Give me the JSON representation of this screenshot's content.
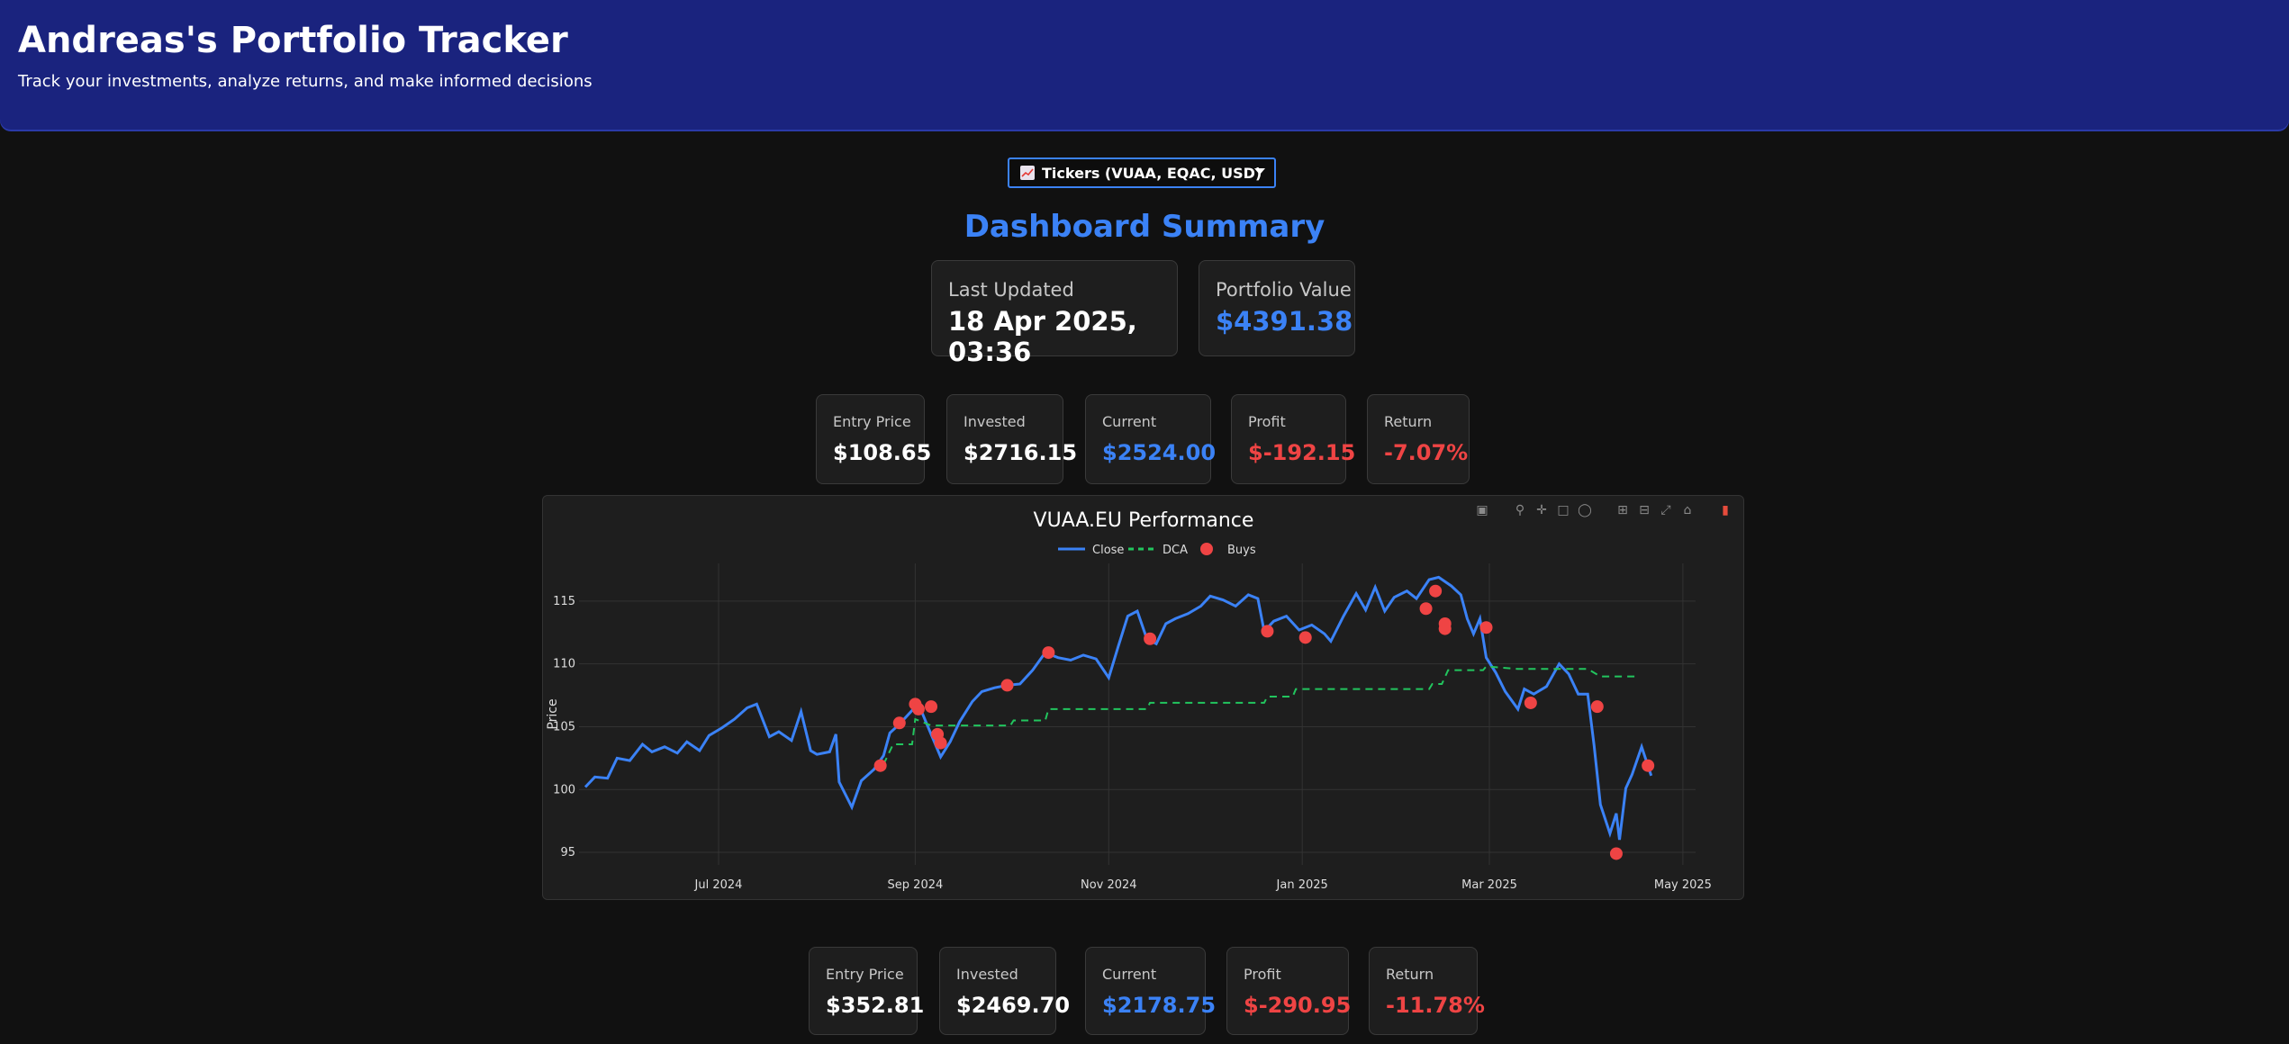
{
  "header": {
    "title": "Andreas's Portfolio Tracker",
    "subtitle": "Track your investments, analyze returns, and make informed decisions"
  },
  "dropdown": {
    "label": "Tickers (VUAA, EQAC, USD)",
    "icon": "chart-emoji-icon"
  },
  "dashboard_title": "Dashboard Summary",
  "summary": {
    "last_updated_label": "Last Updated",
    "last_updated_value": "18 Apr 2025, 03:36",
    "portfolio_value_label": "Portfolio Value",
    "portfolio_value": "$4391.38"
  },
  "positions": [
    {
      "entry_label": "Entry Price",
      "entry": "$108.65",
      "invested_label": "Invested",
      "invested": "$2716.15",
      "current_label": "Current",
      "current": "$2524.00",
      "profit_label": "Profit",
      "profit": "$-192.15",
      "return_label": "Return",
      "return": "-7.07%"
    },
    {
      "entry_label": "Entry Price",
      "entry": "$352.81",
      "invested_label": "Invested",
      "invested": "$2469.70",
      "current_label": "Current",
      "current": "$2178.75",
      "profit_label": "Profit",
      "profit": "$-290.95",
      "return_label": "Return",
      "return": "-11.78%"
    }
  ],
  "colors": {
    "header_bg": "#1a237e",
    "accent": "#3b82f6",
    "negative": "#ef4444",
    "close_line": "#3b82f6",
    "dca_line": "#22c55e",
    "buys": "#ef4444"
  },
  "modebar_icons": [
    "camera-icon",
    "zoom-icon",
    "pan-icon",
    "box-select-icon",
    "lasso-icon",
    "zoom-in-icon",
    "zoom-out-icon",
    "autoscale-icon",
    "reset-axes-icon",
    "plotly-logo-icon"
  ],
  "chart_data": {
    "type": "line",
    "title": "VUAA.EU Performance",
    "ylabel": "Price",
    "xlabel": "",
    "ylim": [
      94,
      118
    ],
    "xlim": [
      "2024-05-18",
      "2025-05-05"
    ],
    "x_ticks": [
      {
        "date": "2024-07-01",
        "label": "Jul 2024"
      },
      {
        "date": "2024-09-01",
        "label": "Sep 2024"
      },
      {
        "date": "2024-11-01",
        "label": "Nov 2024"
      },
      {
        "date": "2025-01-01",
        "label": "Jan 2025"
      },
      {
        "date": "2025-03-01",
        "label": "Mar 2025"
      },
      {
        "date": "2025-05-01",
        "label": "May 2025"
      }
    ],
    "y_ticks": [
      95,
      100,
      105,
      110,
      115
    ],
    "grid": true,
    "legend": "top-center",
    "series": [
      {
        "name": "Close",
        "style": "solid",
        "points": [
          [
            "2024-05-20",
            100.2
          ],
          [
            "2024-05-23",
            101.0
          ],
          [
            "2024-05-27",
            100.9
          ],
          [
            "2024-05-30",
            102.5
          ],
          [
            "2024-06-03",
            102.3
          ],
          [
            "2024-06-07",
            103.6
          ],
          [
            "2024-06-10",
            103.0
          ],
          [
            "2024-06-14",
            103.4
          ],
          [
            "2024-06-18",
            102.9
          ],
          [
            "2024-06-21",
            103.8
          ],
          [
            "2024-06-25",
            103.1
          ],
          [
            "2024-06-28",
            104.3
          ],
          [
            "2024-07-02",
            104.9
          ],
          [
            "2024-07-06",
            105.6
          ],
          [
            "2024-07-10",
            106.5
          ],
          [
            "2024-07-13",
            106.8
          ],
          [
            "2024-07-17",
            104.2
          ],
          [
            "2024-07-20",
            104.6
          ],
          [
            "2024-07-24",
            103.9
          ],
          [
            "2024-07-27",
            106.2
          ],
          [
            "2024-07-30",
            103.1
          ],
          [
            "2024-08-01",
            102.8
          ],
          [
            "2024-08-05",
            103.0
          ],
          [
            "2024-08-07",
            104.4
          ],
          [
            "2024-08-08",
            100.6
          ],
          [
            "2024-08-12",
            98.6
          ],
          [
            "2024-08-15",
            100.7
          ],
          [
            "2024-08-19",
            101.6
          ],
          [
            "2024-08-22",
            102.7
          ],
          [
            "2024-08-24",
            104.5
          ],
          [
            "2024-08-27",
            105.2
          ],
          [
            "2024-08-31",
            106.3
          ],
          [
            "2024-09-03",
            106.2
          ],
          [
            "2024-09-06",
            104.4
          ],
          [
            "2024-09-09",
            102.6
          ],
          [
            "2024-09-12",
            103.8
          ],
          [
            "2024-09-15",
            105.4
          ],
          [
            "2024-09-19",
            107.0
          ],
          [
            "2024-09-22",
            107.8
          ],
          [
            "2024-09-26",
            108.1
          ],
          [
            "2024-09-30",
            108.3
          ],
          [
            "2024-10-04",
            108.4
          ],
          [
            "2024-10-08",
            109.5
          ],
          [
            "2024-10-12",
            110.9
          ],
          [
            "2024-10-16",
            110.5
          ],
          [
            "2024-10-20",
            110.3
          ],
          [
            "2024-10-24",
            110.7
          ],
          [
            "2024-10-28",
            110.4
          ],
          [
            "2024-11-01",
            108.9
          ],
          [
            "2024-11-04",
            111.4
          ],
          [
            "2024-11-07",
            113.8
          ],
          [
            "2024-11-10",
            114.2
          ],
          [
            "2024-11-13",
            112.0
          ],
          [
            "2024-11-16",
            111.6
          ],
          [
            "2024-11-19",
            113.2
          ],
          [
            "2024-11-22",
            113.6
          ],
          [
            "2024-11-26",
            114.0
          ],
          [
            "2024-11-30",
            114.6
          ],
          [
            "2024-12-03",
            115.4
          ],
          [
            "2024-12-07",
            115.1
          ],
          [
            "2024-12-11",
            114.6
          ],
          [
            "2024-12-15",
            115.5
          ],
          [
            "2024-12-18",
            115.2
          ],
          [
            "2024-12-20",
            112.6
          ],
          [
            "2024-12-23",
            113.4
          ],
          [
            "2024-12-27",
            113.8
          ],
          [
            "2024-12-31",
            112.7
          ],
          [
            "2025-01-04",
            113.1
          ],
          [
            "2025-01-08",
            112.4
          ],
          [
            "2025-01-10",
            111.8
          ],
          [
            "2025-01-14",
            113.8
          ],
          [
            "2025-01-18",
            115.6
          ],
          [
            "2025-01-21",
            114.3
          ],
          [
            "2025-01-24",
            116.1
          ],
          [
            "2025-01-27",
            114.2
          ],
          [
            "2025-01-30",
            115.3
          ],
          [
            "2025-02-03",
            115.8
          ],
          [
            "2025-02-06",
            115.2
          ],
          [
            "2025-02-10",
            116.7
          ],
          [
            "2025-02-13",
            116.9
          ],
          [
            "2025-02-17",
            116.2
          ],
          [
            "2025-02-20",
            115.5
          ],
          [
            "2025-02-22",
            113.6
          ],
          [
            "2025-02-24",
            112.4
          ],
          [
            "2025-02-26",
            113.6
          ],
          [
            "2025-02-28",
            110.5
          ],
          [
            "2025-03-03",
            109.3
          ],
          [
            "2025-03-06",
            107.8
          ],
          [
            "2025-03-10",
            106.4
          ],
          [
            "2025-03-12",
            108.0
          ],
          [
            "2025-03-15",
            107.6
          ],
          [
            "2025-03-19",
            108.2
          ],
          [
            "2025-03-23",
            110.0
          ],
          [
            "2025-03-26",
            109.2
          ],
          [
            "2025-03-29",
            107.6
          ],
          [
            "2025-04-01",
            107.6
          ],
          [
            "2025-04-03",
            103.5
          ],
          [
            "2025-04-05",
            98.8
          ],
          [
            "2025-04-08",
            96.5
          ],
          [
            "2025-04-10",
            98.1
          ],
          [
            "2025-04-11",
            96.0
          ],
          [
            "2025-04-13",
            100.1
          ],
          [
            "2025-04-15",
            101.2
          ],
          [
            "2025-04-18",
            103.4
          ],
          [
            "2025-04-21",
            101.1
          ]
        ]
      },
      {
        "name": "DCA",
        "style": "dashed",
        "points": [
          [
            "2024-08-22",
            102.0
          ],
          [
            "2024-08-25",
            103.6
          ],
          [
            "2024-08-31",
            103.6
          ],
          [
            "2024-09-01",
            105.6
          ],
          [
            "2024-09-06",
            105.1
          ],
          [
            "2024-10-01",
            105.1
          ],
          [
            "2024-10-02",
            105.5
          ],
          [
            "2024-10-12",
            105.5
          ],
          [
            "2024-10-13",
            106.4
          ],
          [
            "2024-11-13",
            106.4
          ],
          [
            "2024-11-14",
            106.9
          ],
          [
            "2024-12-20",
            106.9
          ],
          [
            "2024-12-21",
            107.4
          ],
          [
            "2024-12-29",
            107.4
          ],
          [
            "2024-12-30",
            108.0
          ],
          [
            "2025-02-10",
            108.0
          ],
          [
            "2025-02-11",
            108.4
          ],
          [
            "2025-02-14",
            108.4
          ],
          [
            "2025-02-16",
            109.5
          ],
          [
            "2025-02-27",
            109.5
          ],
          [
            "2025-02-28",
            109.8
          ],
          [
            "2025-03-10",
            109.6
          ],
          [
            "2025-03-15",
            109.6
          ],
          [
            "2025-04-01",
            109.6
          ],
          [
            "2025-04-05",
            109.0
          ],
          [
            "2025-04-17",
            109.0
          ]
        ]
      },
      {
        "name": "Buys",
        "style": "markers",
        "points": [
          [
            "2024-08-21",
            101.9
          ],
          [
            "2024-08-27",
            105.3
          ],
          [
            "2024-09-01",
            106.8
          ],
          [
            "2024-09-02",
            106.4
          ],
          [
            "2024-09-06",
            106.6
          ],
          [
            "2024-09-08",
            104.4
          ],
          [
            "2024-09-09",
            103.7
          ],
          [
            "2024-09-30",
            108.3
          ],
          [
            "2024-10-13",
            110.9
          ],
          [
            "2024-11-14",
            112.0
          ],
          [
            "2024-12-21",
            112.6
          ],
          [
            "2025-01-02",
            112.1
          ],
          [
            "2025-02-09",
            114.4
          ],
          [
            "2025-02-12",
            115.8
          ],
          [
            "2025-02-15",
            113.2
          ],
          [
            "2025-02-15",
            112.8
          ],
          [
            "2025-02-28",
            112.9
          ],
          [
            "2025-03-14",
            106.9
          ],
          [
            "2025-04-04",
            106.6
          ],
          [
            "2025-04-10",
            94.9
          ],
          [
            "2025-04-20",
            101.9
          ]
        ]
      }
    ]
  }
}
